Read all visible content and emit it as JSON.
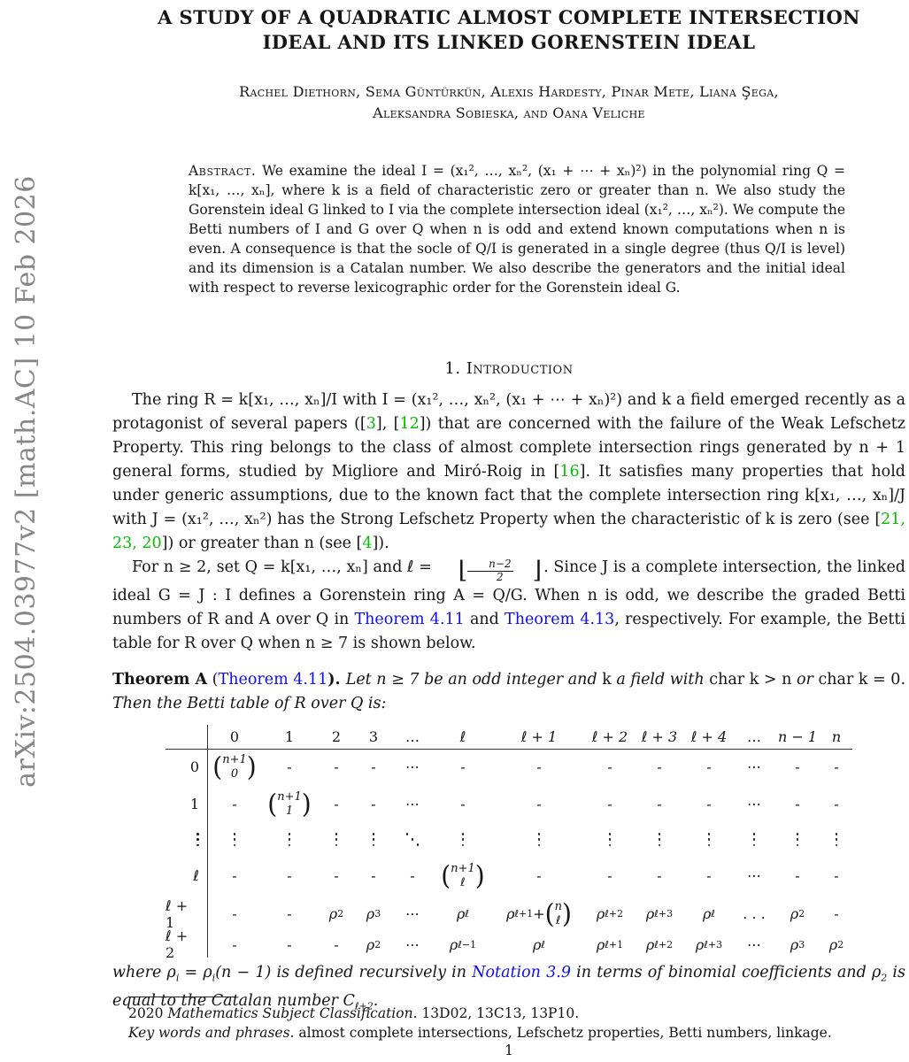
{
  "colors": {
    "citation_green": "#00c000",
    "link_blue": "#0f0fe8",
    "sidebar_gray": "#868686"
  },
  "sidebar": {
    "arxiv_label": "arXiv:2504.03977v2  [math.AC]  10 Feb 2026"
  },
  "header": {
    "title_lines": [
      "A STUDY OF A QUADRATIC ALMOST COMPLETE INTERSECTION",
      "IDEAL AND ITS LINKED GORENSTEIN IDEAL"
    ],
    "author_lines": [
      "Rachel Diethorn, Sema Güntürkün, Alexis Hardesty, Pinar Mete, Liana Şega,",
      "Aleksandra Sobieska, and Oana Veliche"
    ]
  },
  "abstract": {
    "segments": [
      {
        "t": "Abstract.",
        "sc": true
      },
      {
        "t": "  We examine the ideal I = (x₁², …, xₙ², (x₁ + ⋯ + xₙ)²) in the polynomial ring Q = k[x₁, …, xₙ], where k is a field of characteristic zero or greater than n.  We also study the Gorenstein ideal G linked to I via the complete intersection ideal (x₁², …, xₙ²). We compute the Betti numbers of I and G over Q when n is odd and extend known computations when n is even.  A consequence is that the socle of Q/I is generated in a single degree (thus Q/I is level) and its dimension is a Catalan number. We also describe the generators and the initial ideal with respect to reverse lexicographic order for the Gorenstein ideal G."
      }
    ]
  },
  "section1": {
    "heading": "1. Introduction"
  },
  "intro": {
    "p1": [
      {
        "t": "The ring R = k[x₁, …, xₙ]/I with I = (x₁², …, xₙ², (x₁ + ⋯ + xₙ)²) and k a field emerged recently as a protagonist of several papers (["
      },
      {
        "t": "3",
        "c": "green"
      },
      {
        "t": "], ["
      },
      {
        "t": "12",
        "c": "green"
      },
      {
        "t": "]) that are concerned with the failure of the Weak Lefschetz Property. This ring belongs to the class of almost complete intersection rings generated by n + 1 general forms, studied by Migliore and Miró-Roig in ["
      },
      {
        "t": "16",
        "c": "green"
      },
      {
        "t": "].  It satisfies many properties that hold under generic assumptions, due to the known fact that the complete intersection ring k[x₁, …, xₙ]/J with J = (x₁², …, xₙ²) has the Strong Lefschetz Property when the characteristic of k is zero (see ["
      },
      {
        "t": "21, 23, 20",
        "c": "green"
      },
      {
        "t": "]) or greater than n (see ["
      },
      {
        "t": "4",
        "c": "green"
      },
      {
        "t": "])."
      }
    ],
    "p2": [
      {
        "t": "For n ≥ 2, set Q = k[x₁, …, xₙ] and ℓ = "
      },
      {
        "fl": [
          "n−2",
          "2"
        ]
      },
      {
        "t": ".  Since J is a complete intersection, the linked ideal G = J : I defines a Gorenstein ring A = Q/G.  When n is odd, we describe the graded Betti numbers of R and A over Q in "
      },
      {
        "t": "Theorem 4.11",
        "c": "blue"
      },
      {
        "t": " and "
      },
      {
        "t": "Theorem 4.13",
        "c": "blue"
      },
      {
        "t": ", respectively. For example, the Betti table for R over Q when n ≥ 7 is shown below."
      }
    ],
    "thmA": [
      {
        "t": "Theorem A",
        "b": true
      },
      {
        "t": " ("
      },
      {
        "t": "Theorem 4.11",
        "c": "blue"
      },
      {
        "t": "). ",
        "b": true
      },
      {
        "t": "Let n ≥ 7 be an odd integer and ",
        "i": true
      },
      {
        "t": "k"
      },
      {
        "t": " a field with ",
        "i": true
      },
      {
        "t": "char k > n"
      },
      {
        "t": " or ",
        "i": true
      },
      {
        "t": "char k = 0"
      },
      {
        "t": ".  Then the Betti table of R over Q is:",
        "i": true
      }
    ]
  },
  "table": {
    "col_headers": [
      "0",
      "1",
      "2",
      "3",
      "…",
      "ℓ",
      "ℓ + 1",
      "ℓ + 2",
      "ℓ + 3",
      "ℓ + 4",
      "…",
      "n − 1",
      "n"
    ],
    "rows": [
      {
        "label": "0",
        "cells": [
          {
            "binom": [
              "n+1",
              "0"
            ]
          },
          {
            "t": "-"
          },
          {
            "t": "-"
          },
          {
            "t": "-"
          },
          {
            "t": "⋯"
          },
          {
            "t": "-"
          },
          {
            "t": "-"
          },
          {
            "t": "-"
          },
          {
            "t": "-"
          },
          {
            "t": "-"
          },
          {
            "t": "⋯"
          },
          {
            "t": "-"
          },
          {
            "t": "-"
          }
        ]
      },
      {
        "label": "1",
        "cells": [
          {
            "t": "-"
          },
          {
            "binom": [
              "n+1",
              "1"
            ]
          },
          {
            "t": "-"
          },
          {
            "t": "-"
          },
          {
            "t": "⋯"
          },
          {
            "t": "-"
          },
          {
            "t": "-"
          },
          {
            "t": "-"
          },
          {
            "t": "-"
          },
          {
            "t": "-"
          },
          {
            "t": "⋯"
          },
          {
            "t": "-"
          },
          {
            "t": "-"
          }
        ]
      },
      {
        "label": "⋮",
        "cells": [
          {
            "vd": true
          },
          {
            "vd": true
          },
          {
            "vd": true
          },
          {
            "vd": true
          },
          {
            "dd": true
          },
          {
            "vd": true
          },
          {
            "vd": true
          },
          {
            "vd": true
          },
          {
            "vd": true
          },
          {
            "vd": true
          },
          {
            "vd": true
          },
          {
            "vd": true
          },
          {
            "vd": true
          }
        ]
      },
      {
        "label": "ℓ",
        "cells": [
          {
            "t": "-"
          },
          {
            "t": "-"
          },
          {
            "t": "-"
          },
          {
            "t": "-"
          },
          {
            "t": "-"
          },
          {
            "binom": [
              "n+1",
              "ℓ"
            ]
          },
          {
            "t": "-"
          },
          {
            "t": "-"
          },
          {
            "t": "-"
          },
          {
            "t": "-"
          },
          {
            "t": "⋯"
          },
          {
            "t": "-"
          },
          {
            "t": "-"
          }
        ]
      },
      {
        "label": "ℓ + 1",
        "cells": [
          {
            "t": "-"
          },
          {
            "t": "-"
          },
          {
            "rho": "2"
          },
          {
            "rho": "3"
          },
          {
            "t": "⋯"
          },
          {
            "rho": "ℓ"
          },
          {
            "rho": "ℓ+1",
            "plus": [
              "n",
              "ℓ"
            ]
          },
          {
            "rho": "ℓ+2"
          },
          {
            "rho": "ℓ+3"
          },
          {
            "rho": "ℓ"
          },
          {
            "t": ". . ."
          },
          {
            "rho": "2"
          },
          {
            "t": "-"
          }
        ]
      },
      {
        "label": "ℓ + 2",
        "cells": [
          {
            "t": "-"
          },
          {
            "t": "-"
          },
          {
            "t": "-"
          },
          {
            "rho": "2"
          },
          {
            "t": "⋯"
          },
          {
            "rho": "ℓ−1"
          },
          {
            "rho": "ℓ"
          },
          {
            "rho": "ℓ+1"
          },
          {
            "rho": "ℓ+2"
          },
          {
            "rho": "ℓ+3"
          },
          {
            "t": "⋯"
          },
          {
            "rho": "3"
          },
          {
            "rho": "2"
          }
        ]
      }
    ]
  },
  "after_table": [
    {
      "t": "where ρ"
    },
    {
      "s": "i"
    },
    {
      "t": " = ρ"
    },
    {
      "s": "i"
    },
    {
      "t": "(n − 1) is defined recursively in "
    },
    {
      "t": "Notation 3.9",
      "c": "blue"
    },
    {
      "t": " in terms of binomial coefficients and ρ"
    },
    {
      "s": "2"
    },
    {
      "t": " is equal to the Catalan number C"
    },
    {
      "s": "ℓ+2"
    },
    {
      "t": "."
    }
  ],
  "footnotes": {
    "line1": [
      {
        "t": "2020 "
      },
      {
        "t": "Mathematics Subject Classification.",
        "i": true
      },
      {
        "t": " 13D02, 13C13, 13P10."
      }
    ],
    "line2": [
      {
        "t": "Key words and phrases.",
        "i": true
      },
      {
        "t": " almost complete intersections, Lefschetz properties, Betti numbers, linkage."
      }
    ]
  },
  "page_number": "1"
}
